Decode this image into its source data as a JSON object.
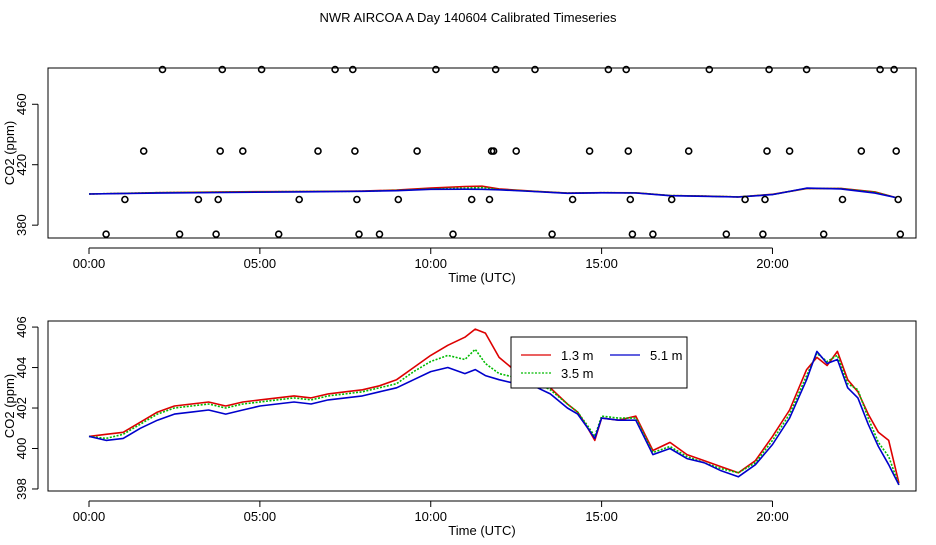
{
  "page": {
    "title": "NWR AIRCOA A  Day 140604  Calibrated Timeseries"
  },
  "colors": {
    "h1_3m": "#dd0000",
    "h3_5m": "#00bb00",
    "h5_1m": "#0000cc",
    "axis": "#000000"
  },
  "chart_data": [
    {
      "type": "scatter",
      "name": "top-panel",
      "xlabel": "Time (UTC)",
      "ylabel": "CO2 (ppm)",
      "xlim": [
        -1.2,
        24.2
      ],
      "ylim": [
        371.5,
        484
      ],
      "xticks": [
        0,
        5,
        10,
        15,
        20
      ],
      "xtick_labels": [
        "00:00",
        "05:00",
        "10:00",
        "15:00",
        "20:00"
      ],
      "yticks": [
        380,
        420,
        460
      ],
      "ytick_labels": [
        "380",
        "420",
        "460"
      ],
      "flag_points": {
        "x": [
          0.5,
          1.05,
          1.6,
          2.15,
          2.65,
          3.2,
          3.72,
          3.78,
          3.84,
          3.9,
          4.5,
          5.05,
          5.55,
          6.15,
          6.7,
          7.2,
          7.72,
          7.78,
          7.84,
          7.9,
          8.5,
          9.05,
          9.6,
          10.15,
          10.65,
          11.2,
          11.72,
          11.78,
          11.84,
          11.9,
          12.5,
          13.05,
          13.55,
          14.15,
          14.65,
          15.2,
          15.72,
          15.78,
          15.84,
          15.9,
          16.5,
          17.05,
          17.55,
          18.15,
          18.65,
          19.2,
          19.72,
          19.78,
          19.84,
          19.9,
          20.5,
          21.0,
          21.5,
          22.05,
          22.6,
          23.15,
          23.56,
          23.62,
          23.68,
          23.74
        ],
        "y": [
          374,
          397,
          429,
          483,
          374,
          397,
          374,
          397,
          429,
          483,
          429,
          483,
          374,
          397,
          429,
          483,
          483,
          429,
          397,
          374,
          374,
          397,
          429,
          483,
          374,
          397,
          397,
          429,
          429,
          483,
          429,
          483,
          374,
          397,
          429,
          483,
          483,
          429,
          397,
          374,
          374,
          397,
          429,
          483,
          374,
          397,
          374,
          397,
          429,
          483,
          429,
          483,
          374,
          397,
          429,
          483,
          483,
          429,
          397,
          374
        ]
      },
      "series": [
        {
          "name": "1.3 m",
          "x": [
            0,
            2,
            4,
            6,
            8,
            9,
            10,
            11,
            11.5,
            12,
            13,
            14,
            15,
            16,
            17,
            18,
            19,
            20,
            21,
            22,
            23,
            23.6
          ],
          "y": [
            400.6,
            401.5,
            402.0,
            402.3,
            402.6,
            403.2,
            404.5,
            405.6,
            405.8,
            404.0,
            402.5,
            401.2,
            401.5,
            401.4,
            399.6,
            399.2,
            398.7,
            400.4,
            404.2,
            404.3,
            402.0,
            398.3
          ]
        },
        {
          "name": "3.5 m",
          "x": [
            0,
            2,
            4,
            6,
            8,
            9,
            10,
            11,
            11.5,
            12,
            13,
            14,
            15,
            16,
            17,
            18,
            19,
            20,
            21,
            22,
            23,
            23.6
          ],
          "y": [
            400.6,
            401.5,
            401.9,
            402.2,
            402.5,
            403.0,
            404.0,
            404.5,
            404.9,
            403.6,
            402.4,
            401.2,
            401.5,
            401.4,
            399.6,
            399.2,
            398.7,
            400.3,
            404.3,
            404.2,
            401.8,
            398.3
          ]
        },
        {
          "name": "5.1 m",
          "x": [
            0,
            2,
            4,
            6,
            8,
            9,
            10,
            11,
            11.5,
            12,
            13,
            14,
            15,
            16,
            17,
            18,
            19,
            20,
            21,
            22,
            23,
            23.6
          ],
          "y": [
            400.6,
            401.2,
            401.6,
            402.0,
            402.4,
            402.8,
            403.7,
            403.8,
            403.7,
            403.4,
            402.3,
            401.1,
            401.4,
            401.3,
            399.5,
            399.1,
            398.6,
            400.2,
            404.5,
            404.0,
            401.2,
            398.3
          ]
        }
      ]
    },
    {
      "type": "line",
      "name": "bottom-panel",
      "xlabel": "Time (UTC)",
      "ylabel": "CO2 (ppm)",
      "xlim": [
        -1.2,
        24.2
      ],
      "ylim": [
        397.9,
        406.3
      ],
      "xticks": [
        0,
        5,
        10,
        15,
        20
      ],
      "xtick_labels": [
        "00:00",
        "05:00",
        "10:00",
        "15:00",
        "20:00"
      ],
      "yticks": [
        398,
        400,
        402,
        404,
        406
      ],
      "ytick_labels": [
        "398",
        "400",
        "402",
        "404",
        "406"
      ],
      "legend": {
        "position": "top-right",
        "entries": [
          "1.3 m",
          "3.5 m",
          "5.1 m"
        ]
      },
      "series": [
        {
          "name": "1.3 m",
          "x": [
            0,
            0.5,
            1,
            1.5,
            2,
            2.5,
            3,
            3.5,
            4,
            4.5,
            5,
            5.5,
            6,
            6.5,
            7,
            7.5,
            8,
            8.5,
            9,
            9.5,
            10,
            10.5,
            11,
            11.3,
            11.6,
            12,
            12.5,
            13,
            13.5,
            14,
            14.3,
            14.6,
            14.8,
            15,
            15.5,
            16,
            16.5,
            17,
            17.5,
            18,
            18.5,
            19,
            19.5,
            20,
            20.5,
            21,
            21.3,
            21.6,
            21.9,
            22.2,
            22.5,
            22.8,
            23.1,
            23.4,
            23.7
          ],
          "y": [
            400.6,
            400.7,
            400.8,
            401.3,
            401.8,
            402.1,
            402.2,
            402.3,
            402.1,
            402.3,
            402.4,
            402.5,
            402.6,
            402.5,
            402.7,
            402.8,
            402.9,
            403.1,
            403.4,
            404.0,
            404.6,
            405.1,
            405.5,
            405.9,
            405.7,
            404.5,
            403.8,
            403.5,
            403.0,
            402.2,
            401.8,
            401.0,
            400.4,
            401.5,
            401.4,
            401.6,
            399.9,
            400.3,
            399.7,
            399.4,
            399.1,
            398.8,
            399.4,
            400.6,
            401.9,
            403.9,
            404.5,
            404.1,
            404.8,
            403.4,
            402.8,
            401.7,
            400.8,
            400.4,
            398.3
          ]
        },
        {
          "name": "3.5 m",
          "x": [
            0,
            0.5,
            1,
            1.5,
            2,
            2.5,
            3,
            3.5,
            4,
            4.5,
            5,
            5.5,
            6,
            6.5,
            7,
            7.5,
            8,
            8.5,
            9,
            9.5,
            10,
            10.5,
            11,
            11.3,
            11.6,
            12,
            12.5,
            13,
            13.5,
            14,
            14.3,
            14.6,
            14.8,
            15,
            15.5,
            16,
            16.5,
            17,
            17.5,
            18,
            18.5,
            19,
            19.5,
            20,
            20.5,
            21,
            21.3,
            21.6,
            21.9,
            22.2,
            22.5,
            22.8,
            23.1,
            23.4,
            23.7
          ],
          "y": [
            400.6,
            400.5,
            400.7,
            401.2,
            401.7,
            402.0,
            402.1,
            402.2,
            402.0,
            402.2,
            402.3,
            402.4,
            402.5,
            402.4,
            402.6,
            402.7,
            402.8,
            403.0,
            403.2,
            403.8,
            404.3,
            404.6,
            404.4,
            404.9,
            404.2,
            403.7,
            403.5,
            403.3,
            402.9,
            402.2,
            401.8,
            401.1,
            400.6,
            401.6,
            401.5,
            401.5,
            399.8,
            400.1,
            399.6,
            399.3,
            399.0,
            398.8,
            399.3,
            400.4,
            401.7,
            403.6,
            404.7,
            404.3,
            404.6,
            403.2,
            402.9,
            401.5,
            400.3,
            399.6,
            398.2
          ]
        },
        {
          "name": "5.1 m",
          "x": [
            0,
            0.5,
            1,
            1.5,
            2,
            2.5,
            3,
            3.5,
            4,
            4.5,
            5,
            5.5,
            6,
            6.5,
            7,
            7.5,
            8,
            8.5,
            9,
            9.5,
            10,
            10.5,
            11,
            11.3,
            11.6,
            12,
            12.5,
            13,
            13.5,
            14,
            14.3,
            14.6,
            14.8,
            15,
            15.5,
            16,
            16.5,
            17,
            17.5,
            18,
            18.5,
            19,
            19.5,
            20,
            20.5,
            21,
            21.3,
            21.6,
            21.9,
            22.2,
            22.5,
            22.8,
            23.1,
            23.4,
            23.7
          ],
          "y": [
            400.6,
            400.4,
            400.5,
            401.0,
            401.4,
            401.7,
            401.8,
            401.9,
            401.7,
            401.9,
            402.1,
            402.2,
            402.3,
            402.2,
            402.4,
            402.5,
            402.6,
            402.8,
            403.0,
            403.4,
            403.8,
            404.0,
            403.7,
            403.9,
            403.6,
            403.4,
            403.2,
            403.1,
            402.7,
            402.0,
            401.7,
            401.0,
            400.5,
            401.5,
            401.4,
            401.4,
            399.7,
            400.0,
            399.5,
            399.3,
            398.9,
            398.6,
            399.2,
            400.2,
            401.5,
            403.4,
            404.8,
            404.2,
            404.4,
            403.0,
            402.5,
            401.2,
            400.1,
            399.2,
            398.2
          ]
        }
      ]
    }
  ]
}
